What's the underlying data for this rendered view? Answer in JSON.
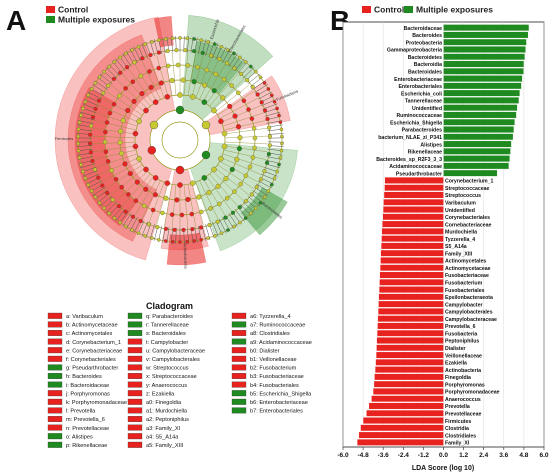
{
  "panel_a": {
    "letter": "A",
    "legend": [
      {
        "label": "Control",
        "color": "#e8231f"
      },
      {
        "label": "Multiple exposures",
        "color": "#1f8a1f"
      }
    ],
    "cladogram_title": "Cladogram",
    "key_columns": [
      [
        {
          "text": "a: Varibaculum",
          "group": "control"
        },
        {
          "text": "b: Actinomycetaceae",
          "group": "control"
        },
        {
          "text": "c: Actinomycetales",
          "group": "control"
        },
        {
          "text": "d: Corynebacterium_1",
          "group": "control"
        },
        {
          "text": "e: Corynebacteriaceae",
          "group": "control"
        },
        {
          "text": "f: Corynebacteriales",
          "group": "control"
        },
        {
          "text": "g: Pseudarthrobacter",
          "group": "multiple"
        },
        {
          "text": "h: Bacteroides",
          "group": "multiple"
        },
        {
          "text": "i: Bacteroidaceae",
          "group": "multiple"
        },
        {
          "text": "j: Porphyromonas",
          "group": "control"
        },
        {
          "text": "k: Porphyromonadaceae",
          "group": "control"
        },
        {
          "text": "l: Prevotella",
          "group": "control"
        },
        {
          "text": "m: Prevotella_6",
          "group": "control"
        },
        {
          "text": "n: Prevotellaceae",
          "group": "control"
        },
        {
          "text": "o: Alistipes",
          "group": "multiple"
        },
        {
          "text": "p: Rikenellaceae",
          "group": "multiple"
        }
      ],
      [
        {
          "text": "q: Parabacteroides",
          "group": "multiple"
        },
        {
          "text": "r: Tannerellaceae",
          "group": "multiple"
        },
        {
          "text": "s: Bacteroidales",
          "group": "multiple"
        },
        {
          "text": "t: Campylobacter",
          "group": "control"
        },
        {
          "text": "u: Campylobacteraceae",
          "group": "control"
        },
        {
          "text": "v: Campylobacterales",
          "group": "control"
        },
        {
          "text": "w: Streptococcus",
          "group": "control"
        },
        {
          "text": "x: Streptococcaceae",
          "group": "control"
        },
        {
          "text": "y: Anaerococcus",
          "group": "control"
        },
        {
          "text": "z: Ezakiella",
          "group": "control"
        },
        {
          "text": "a0: Finegoldia",
          "group": "control"
        },
        {
          "text": "a1: Murdochiella",
          "group": "control"
        },
        {
          "text": "a2: Peptoniphilus",
          "group": "control"
        },
        {
          "text": "a3: Family_XI",
          "group": "control"
        },
        {
          "text": "a4: S5_A14a",
          "group": "control"
        },
        {
          "text": "a5: Family_XIII",
          "group": "control"
        }
      ],
      [
        {
          "text": "a6: Tyzzerella_4",
          "group": "control"
        },
        {
          "text": "a7: Ruminococcaceae",
          "group": "multiple"
        },
        {
          "text": "a8: Clostridiales",
          "group": "control"
        },
        {
          "text": "a9: Acidaminococcaceae",
          "group": "multiple"
        },
        {
          "text": "b0: Dialister",
          "group": "control"
        },
        {
          "text": "b1: Veillonellaceae",
          "group": "control"
        },
        {
          "text": "b2: Fusobacterium",
          "group": "control"
        },
        {
          "text": "b3: Fusobacteriaceae",
          "group": "control"
        },
        {
          "text": "b4: Fusobacteriales",
          "group": "control"
        },
        {
          "text": "b5: Escherichia_Shigella",
          "group": "multiple"
        },
        {
          "text": "b6: Enterobacteriaceae",
          "group": "multiple"
        },
        {
          "text": "b7: Enterobacteriales",
          "group": "multiple"
        }
      ]
    ],
    "sector_labels": [
      "Escherichia",
      "Enterobacteriales",
      "Firmicutes",
      "Fusobacteria",
      "Actinobacteria",
      "Bacteroidetes"
    ]
  },
  "panel_b": {
    "letter": "B",
    "legend": [
      {
        "label": "Control",
        "color": "#e8231f"
      },
      {
        "label": "Multiple exposures",
        "color": "#1f8a1f"
      }
    ],
    "colors": {
      "control": "#e8231f",
      "multiple": "#1f8a1f"
    }
  },
  "chart_data": {
    "type": "bar",
    "orientation": "horizontal",
    "xlabel": "LDA Score (log 10)",
    "xlim": [
      -6.0,
      6.0
    ],
    "xticks": [
      "-6.0",
      "-4.8",
      "-3.6",
      "-2.4",
      "-1.2",
      "0.0",
      "1.2",
      "2.4",
      "3.6",
      "4.8",
      "6.0"
    ],
    "series": [
      {
        "name": "Multiple exposures",
        "color": "#1f8a1f",
        "categories": [
          "Bacteroidaceae",
          "Bacteroides",
          "Proteobacteria",
          "Gammaproteobacteria",
          "Bacteroidetes",
          "Bacteroidia",
          "Bacteroidales",
          "Enterobacteriaceae",
          "Enterobacteriales",
          "Escherichia_coli",
          "Tannerellaceae",
          "Unidentified",
          "Ruminococcaceae",
          "Escherichia_Shigella",
          "Parabacteroides",
          "bacterium_NLAE_zl_P341",
          "Alistipes",
          "Rikenellaceae",
          "Bacteroides_sp_R2F3_3_3",
          "Acidaminococcaceae",
          "Pseudarthrobacter"
        ],
        "values": [
          5.1,
          5.05,
          4.95,
          4.9,
          4.85,
          4.8,
          4.78,
          4.7,
          4.65,
          4.55,
          4.5,
          4.4,
          4.35,
          4.25,
          4.2,
          4.15,
          4.05,
          4.0,
          3.95,
          3.9,
          3.2
        ]
      },
      {
        "name": "Control",
        "color": "#e8231f",
        "categories": [
          "Corynebacterium_1",
          "Streptococcaceae",
          "Streptococcus",
          "Varibaculum",
          "Unidentified",
          "Corynebacteriales",
          "Cornebacteriaceae",
          "Murdochiella",
          "Tyzzerella_4",
          "S5_A14a",
          "Family_XIII",
          "Actinomycetales",
          "Actinomycetaceae",
          "Fusobacteriaceae",
          "Fusobacterium",
          "Fusobacteriales",
          "Epsilonbacteraeota",
          "Campylobacter",
          "Campylobacterales",
          "Campylobacteraceae",
          "Prevotella_6",
          "Fusobacteria",
          "Peptoniphilus",
          "Dialister",
          "Veillonellaceae",
          "Ezakiella",
          "Actinobacteria",
          "Finegoldia",
          "Porphyromonas",
          "Porphyromonadaceae",
          "Anaerococcus",
          "Prevotella",
          "Prevotellaceae",
          "Firmicutes",
          "Clostridia",
          "Clostridiales",
          "Family_XI"
        ],
        "values": [
          -3.5,
          -3.52,
          -3.55,
          -3.58,
          -3.6,
          -3.62,
          -3.65,
          -3.68,
          -3.7,
          -3.72,
          -3.74,
          -3.76,
          -3.78,
          -3.8,
          -3.82,
          -3.84,
          -3.86,
          -3.88,
          -3.9,
          -3.92,
          -3.94,
          -3.96,
          -3.98,
          -4.0,
          -4.02,
          -4.05,
          -4.08,
          -4.12,
          -4.15,
          -4.2,
          -4.3,
          -4.45,
          -4.6,
          -4.8,
          -4.95,
          -5.05,
          -5.15
        ]
      }
    ]
  }
}
